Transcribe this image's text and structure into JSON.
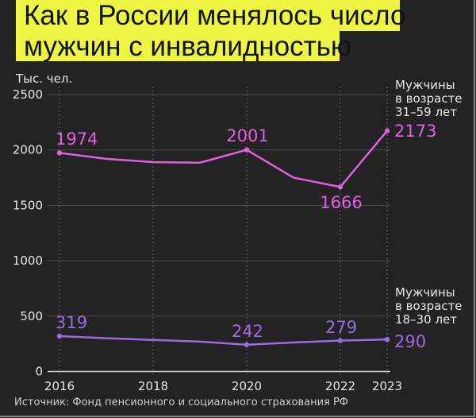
{
  "title": {
    "line1": "Как в России менялось число",
    "line2": "мужчин с инвалидностью"
  },
  "colors": {
    "background": "#232323",
    "title_bg": "#eef542",
    "older_series": "#e35de6",
    "younger_series": "#9b6be6",
    "grid": "#4a4a4a",
    "baseline": "#d0d0d0"
  },
  "source": "Источник: Фонд пенсионного и социального страхования РФ",
  "chart_data": {
    "type": "line",
    "title": "Как в России менялось число мужчин с инвалидностью",
    "ylabel": "Тыс. чел.",
    "xlabel": "",
    "ylim": [
      0,
      2500
    ],
    "yticks": [
      0,
      500,
      1000,
      1500,
      2000,
      2500
    ],
    "xticks": [
      "2016",
      "2018",
      "2020",
      "2022",
      "2023"
    ],
    "x": [
      2016,
      2017,
      2018,
      2019,
      2020,
      2021,
      2022,
      2023
    ],
    "grid": {
      "horizontal": true,
      "vertical_dotted": true
    },
    "legend_position": "right, inline labels",
    "series": [
      {
        "name": "Мужчины в возрасте 31–59 лет",
        "label_lines": [
          "Мужчины",
          "в возрасте",
          "31–59 лет"
        ],
        "values": [
          1974,
          1920,
          1890,
          1885,
          2001,
          1750,
          1666,
          2173
        ],
        "labeled_points": [
          {
            "x": 2016,
            "value": "1974"
          },
          {
            "x": 2020,
            "value": "2001"
          },
          {
            "x": 2022,
            "value": "1666"
          },
          {
            "x": 2023,
            "value": "2173"
          }
        ]
      },
      {
        "name": "Мужчины в возрасте 18–30 лет",
        "label_lines": [
          "Мужчины",
          "в возрасте",
          "18–30 лет"
        ],
        "values": [
          319,
          300,
          285,
          270,
          242,
          262,
          279,
          290
        ],
        "labeled_points": [
          {
            "x": 2016,
            "value": "319"
          },
          {
            "x": 2020,
            "value": "242"
          },
          {
            "x": 2022,
            "value": "279"
          },
          {
            "x": 2023,
            "value": "290"
          }
        ]
      }
    ]
  }
}
